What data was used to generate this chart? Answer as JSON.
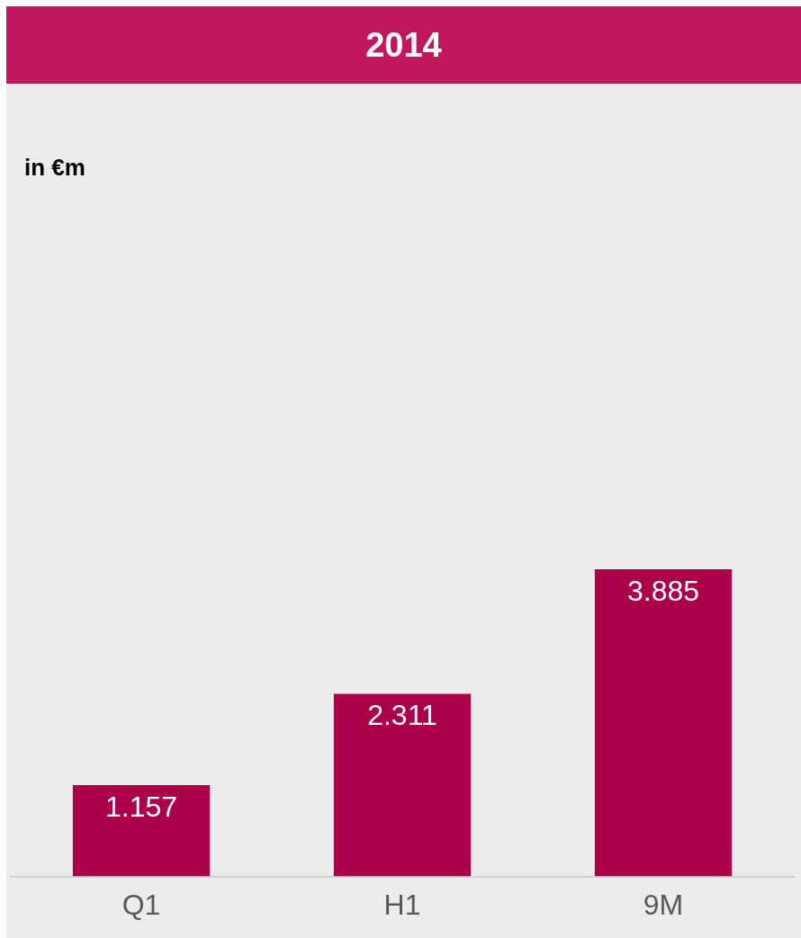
{
  "chart_data": {
    "type": "bar",
    "title": "2014",
    "annotations": [
      "in €m"
    ],
    "categories": [
      "Q1",
      "H1",
      "9M"
    ],
    "values": [
      1.157,
      2.311,
      3.885
    ],
    "data_labels": true,
    "color": "#ab004a",
    "tick_labels": "x",
    "grid": false,
    "legend": false
  }
}
